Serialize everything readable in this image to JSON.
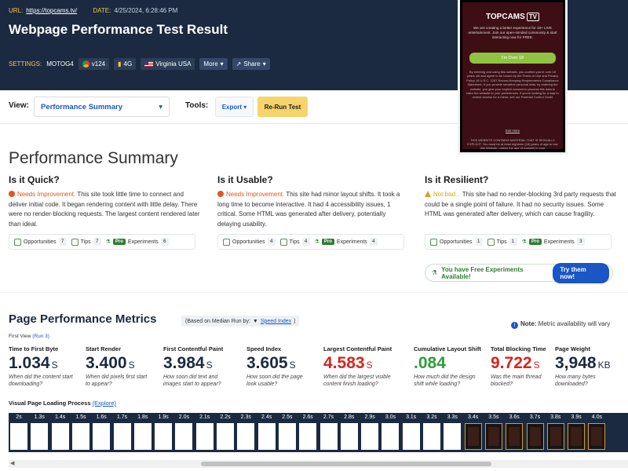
{
  "header": {
    "url_label": "URL:",
    "url": "https://topcams.tv/",
    "date_label": "DATE:",
    "date": "4/25/2024, 6:28:46 PM",
    "title": "Webpage Performance Test Result",
    "settings_label": "SETTINGS:",
    "device": "MOTOG4",
    "browser_version": "v124",
    "connection": "4G",
    "location": "Virginia USA",
    "more_label": "More",
    "share_label": "Share"
  },
  "toolbar": {
    "view_label": "View:",
    "view_value": "Performance Summary",
    "tools_label": "Tools:",
    "export_label": "Export",
    "rerun_label": "Re-Run Test"
  },
  "summary": {
    "title": "Performance Summary",
    "cards": [
      {
        "heading": "Is it Quick?",
        "status": "Needs Improvement.",
        "text": " This site took little time to connect and deliver initial code. It began rendering content with little delay. There were no render-blocking requests. The largest content rendered later than ideal.",
        "opportunities_label": "Opportunities",
        "opportunities": "7",
        "tips_label": "Tips",
        "tips": "7",
        "pro_label": "Pro",
        "experiments_label": "Experiments",
        "experiments": "6"
      },
      {
        "heading": "Is it Usable?",
        "status": "Needs Improvement.",
        "text": " This site had minor layout shifts. It took a long time to become interactive. It had 4 accessibility issues, 1 critical. Some HTML was generated after delivery, potentially delaying usability.",
        "opportunities_label": "Opportunities",
        "opportunities": "4",
        "tips_label": "Tips",
        "tips": "4",
        "pro_label": "Pro",
        "experiments_label": "Experiments",
        "experiments": "4"
      },
      {
        "heading": "Is it Resilient?",
        "status": "Not bad...",
        "text": " This site had no render-blocking 3rd party requests that could be a single point of failure. It had no security issues. Some HTML was generated after delivery, which can cause fragility.",
        "opportunities_label": "Opportunities",
        "opportunities": "1",
        "tips_label": "Tips",
        "tips": "1",
        "pro_label": "Pro",
        "experiments_label": "Experiments",
        "experiments": "3"
      }
    ],
    "free_experiments": "You have Free Experiments Available!",
    "try_label": "Try them now!"
  },
  "metrics": {
    "title": "Page Performance Metrics",
    "median_prefix": "(Based on Median Run by:",
    "median_arrow": "▼",
    "median_link": "Speed Index",
    "median_suffix": ")",
    "note_label": "Note:",
    "note_text": " Metric availability will vary",
    "first_view": "First View",
    "run_link": "(Run 3)",
    "items": [
      {
        "name": "Time to First Byte",
        "value": "1.034",
        "unit": "S",
        "desc": "When did the content start downloading?"
      },
      {
        "name": "Start Render",
        "value": "3.400",
        "unit": "S",
        "desc": "When did pixels first start to appear?"
      },
      {
        "name": "First Contentful Paint",
        "value": "3.984",
        "unit": "S",
        "desc": "How soon did text and images start to appear?"
      },
      {
        "name": "Speed Index",
        "value": "3.605",
        "unit": "S",
        "desc": "How soon did the page look usable?"
      },
      {
        "name": "Largest Contentful Paint",
        "value": "4.583",
        "unit": "S",
        "desc": "When did the largest visible content finish loading?"
      },
      {
        "name": "Cumulative Layout Shift",
        "value": ".084",
        "unit": "",
        "desc": "How much did the design shift while loading?"
      },
      {
        "name": "Total Blocking Time",
        "value": "9.722",
        "unit": "S",
        "desc": "Was the main thread blocked?"
      },
      {
        "name": "Page Weight",
        "value": "3,948",
        "unit": "KB",
        "desc": "How many bytes downloaded?"
      }
    ],
    "visual_label": "Visual Page Loading Process",
    "explore_link": "(Explore)",
    "frames": [
      "2s",
      "1.3s",
      "1.4s",
      "1.5s",
      "1.6s",
      "1.7s",
      "1.8s",
      "1.9s",
      "2.0s",
      "2.1s",
      "2.2s",
      "2.3s",
      "2.4s",
      "2.5s",
      "2.6s",
      "2.7s",
      "2.8s",
      "2.9s",
      "3.0s",
      "3.1s",
      "3.2s",
      "3.3s",
      "3.4s",
      "3.5s",
      "3.6s",
      "3.7s",
      "3.8s",
      "3.9s",
      "4.0s"
    ],
    "rendered_from": 22
  },
  "ad": {
    "logo": "TOPCAMS",
    "logo_tv": "TV",
    "copy": "We are creating a better experience for 18+ LIVE entertainment. Join our open-minded community & start interacting now for FREE.",
    "over_label": "I'm Over 18",
    "fine_print": "By entering and using this website, you confirm you're over 18 years old and agree to be bound by the Terms of Use and Privacy Policy 18 U.S.C. 2257 Record-Keeping Requirements Compliance Statement. If you provide sensitive personal data, by entering the website, you give your explicit consent to process this data to tailor the website to your preferences. If you're looking for a way to restrict access for a minor, see our Parental Control Guide",
    "exit_label": "Exit Here",
    "warning": "THIS WEBSITE CONTAINS MATERIAL THAT IS SEXUALLY EXPLICIT. You must be at least eighteen (18) years of age to use this Website, unless the age of majority in your"
  },
  "colors": {
    "header_bg": "#1b2a41",
    "accent_blue": "#1a56c4",
    "needs_improvement": "#e0581d",
    "not_bad": "#d9a020",
    "bad_metric": "#d8231f",
    "good_metric": "#2e9e3a",
    "rerun_button": "#f6d36b"
  }
}
